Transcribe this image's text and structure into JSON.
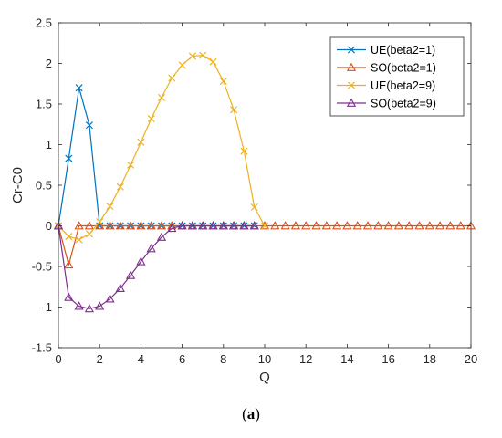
{
  "caption": {
    "open": "(",
    "letter": "a",
    "close": ")"
  },
  "chart_data": {
    "type": "line",
    "xlabel": "Q",
    "ylabel": "Cr-C0",
    "xlim": [
      0,
      20
    ],
    "ylim": [
      -1.5,
      2.5
    ],
    "xticks": [
      0,
      2,
      4,
      6,
      8,
      10,
      12,
      14,
      16,
      18,
      20
    ],
    "yticks": [
      -1.5,
      -1,
      -0.5,
      0,
      0.5,
      1,
      1.5,
      2,
      2.5
    ],
    "xtick_labels": [
      "0",
      "2",
      "4",
      "6",
      "8",
      "10",
      "12",
      "14",
      "16",
      "18",
      "20"
    ],
    "ytick_labels": [
      "-1.5",
      "-1",
      "-0.5",
      "0",
      "0.5",
      "1",
      "1.5",
      "2",
      "2.5"
    ],
    "grid": false,
    "legend_position": "top-right",
    "series": [
      {
        "name": "UE(beta2=1)",
        "color": "#0072BD",
        "marker": "x",
        "x": [
          0,
          0.5,
          1,
          1.5,
          2,
          2.5,
          3,
          3.5,
          4,
          4.5,
          5,
          5.5,
          6,
          6.5,
          7,
          7.5,
          8,
          8.5,
          9,
          9.5
        ],
        "y": [
          0,
          0.83,
          1.7,
          1.24,
          0,
          0,
          0,
          0,
          0,
          0,
          0,
          0,
          0,
          0,
          0,
          0,
          0,
          0,
          0,
          0
        ]
      },
      {
        "name": "SO(beta2=1)",
        "color": "#D95319",
        "marker": "triangle",
        "x": [
          0,
          0.5,
          1,
          1.5,
          2,
          2.5,
          3,
          3.5,
          4,
          4.5,
          5,
          5.5,
          6,
          6.5,
          7,
          7.5,
          8,
          8.5,
          9,
          9.5,
          10,
          10.5,
          11,
          11.5,
          12,
          12.5,
          13,
          13.5,
          14,
          14.5,
          15,
          15.5,
          16,
          16.5,
          17,
          17.5,
          18,
          18.5,
          19,
          19.5,
          20
        ],
        "y": [
          0,
          -0.48,
          0,
          0,
          0,
          0,
          0,
          0,
          0,
          0,
          0,
          0,
          0,
          0,
          0,
          0,
          0,
          0,
          0,
          0,
          0,
          0,
          0,
          0,
          0,
          0,
          0,
          0,
          0,
          0,
          0,
          0,
          0,
          0,
          0,
          0,
          0,
          0,
          0,
          0,
          0
        ]
      },
      {
        "name": "UE(beta2=9)",
        "color": "#EDB120",
        "marker": "x",
        "x": [
          0,
          0.5,
          1,
          1.5,
          2,
          2.5,
          3,
          3.5,
          4,
          4.5,
          5,
          5.5,
          6,
          6.5,
          7,
          7.5,
          8,
          8.5,
          9,
          9.5,
          10
        ],
        "y": [
          0,
          -0.13,
          -0.17,
          -0.1,
          0.05,
          0.24,
          0.48,
          0.75,
          1.03,
          1.32,
          1.58,
          1.82,
          1.98,
          2.09,
          2.1,
          2.02,
          1.78,
          1.43,
          0.92,
          0.23,
          0
        ]
      },
      {
        "name": "SO(beta2=9)",
        "color": "#7E2F8E",
        "marker": "triangle",
        "x": [
          0,
          0.5,
          1,
          1.5,
          2,
          2.5,
          3,
          3.5,
          4,
          4.5,
          5,
          5.5,
          6,
          6.5,
          7,
          7.5,
          8,
          8.5,
          9,
          9.5
        ],
        "y": [
          0,
          -0.88,
          -0.99,
          -1.02,
          -0.99,
          -0.9,
          -0.77,
          -0.61,
          -0.44,
          -0.28,
          -0.14,
          -0.03,
          0,
          0,
          0,
          0,
          0,
          0,
          0,
          0
        ]
      }
    ]
  }
}
